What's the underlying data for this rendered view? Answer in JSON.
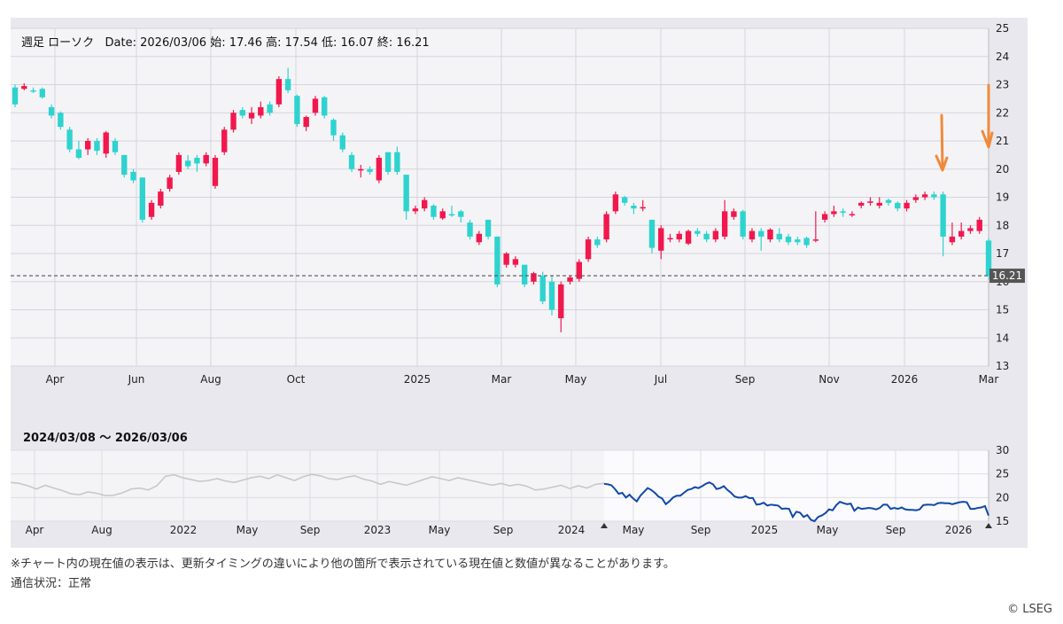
{
  "header": {
    "period": "週足 ローソク",
    "date_label": "Date:",
    "date": "2026/03/06",
    "open_label": "始:",
    "open": "17.46",
    "high_label": "高:",
    "high": "17.54",
    "low_label": "低:",
    "low": "16.07",
    "close_label": "終:",
    "close": "16.21"
  },
  "navigator": {
    "range": "2024/03/08 〜 2026/03/06"
  },
  "notes": {
    "line1": "※チャート内の現在値の表示は、更新タイミングの違いにより他の箇所で表示されている現在値と数値が異なることがあります。",
    "line2": "通信状況：正常"
  },
  "credit": "© LSEG",
  "colors": {
    "up": "#f2174d",
    "down": "#2ed3cf",
    "nav_line": "#1148a8",
    "nav_bg_line": "#c8c8c8",
    "annotation": "#f08a3a"
  },
  "chart_data": [
    {
      "type": "candlestick",
      "title": "週足 ローソク",
      "ylim": [
        13,
        25
      ],
      "y_ticks": [
        "13",
        "14",
        "15",
        "16",
        "17",
        "18",
        "19",
        "20",
        "21",
        "22",
        "23",
        "24",
        "25"
      ],
      "x_tick_labels": [
        "Apr",
        "Jun",
        "Aug",
        "Oct",
        "2025",
        "Mar",
        "May",
        "Jul",
        "Sep",
        "Nov",
        "2026",
        "Mar"
      ],
      "current_value": "16.21",
      "candles": [
        [
          22.9,
          22.3,
          23.0,
          22.2
        ],
        [
          22.85,
          22.95,
          23.05,
          22.8
        ],
        [
          22.8,
          22.75,
          22.9,
          22.7
        ],
        [
          22.85,
          22.55,
          22.9,
          22.5
        ],
        [
          22.2,
          21.9,
          22.3,
          21.8
        ],
        [
          22.0,
          21.5,
          22.05,
          21.4
        ],
        [
          21.4,
          20.7,
          21.5,
          20.6
        ],
        [
          20.7,
          20.4,
          21.0,
          20.35
        ],
        [
          20.7,
          21.0,
          21.1,
          20.5
        ],
        [
          21.0,
          20.65,
          21.1,
          20.5
        ],
        [
          20.55,
          21.3,
          21.35,
          20.4
        ],
        [
          21.0,
          20.6,
          21.1,
          20.5
        ],
        [
          20.5,
          19.8,
          20.5,
          19.7
        ],
        [
          19.9,
          19.6,
          20.0,
          19.5
        ],
        [
          19.7,
          18.2,
          19.7,
          18.1
        ],
        [
          18.3,
          18.8,
          18.9,
          18.2
        ],
        [
          18.7,
          19.2,
          19.3,
          18.6
        ],
        [
          19.3,
          19.7,
          19.8,
          19.2
        ],
        [
          19.9,
          20.5,
          20.6,
          19.8
        ],
        [
          20.3,
          20.1,
          20.5,
          20.0
        ],
        [
          20.4,
          20.2,
          20.5,
          19.9
        ],
        [
          20.2,
          20.5,
          20.6,
          20.1
        ],
        [
          19.4,
          20.4,
          20.5,
          19.3
        ],
        [
          20.6,
          21.4,
          21.5,
          20.5
        ],
        [
          21.4,
          22.0,
          22.1,
          21.3
        ],
        [
          22.1,
          21.9,
          22.2,
          21.8
        ],
        [
          21.8,
          22.0,
          22.2,
          21.6
        ],
        [
          21.9,
          22.2,
          22.4,
          21.8
        ],
        [
          22.3,
          22.0,
          22.4,
          21.9
        ],
        [
          22.3,
          23.2,
          23.3,
          22.2
        ],
        [
          23.2,
          22.8,
          23.6,
          22.7
        ],
        [
          22.6,
          21.6,
          22.65,
          21.5
        ],
        [
          21.5,
          21.85,
          21.9,
          21.35
        ],
        [
          22.0,
          22.5,
          22.6,
          21.9
        ],
        [
          22.55,
          21.9,
          22.6,
          21.8
        ],
        [
          21.75,
          21.2,
          21.8,
          21.0
        ],
        [
          21.2,
          20.7,
          21.3,
          20.6
        ],
        [
          20.5,
          20.0,
          20.6,
          19.9
        ],
        [
          19.95,
          20.0,
          20.15,
          19.7
        ],
        [
          20.0,
          19.9,
          20.1,
          19.8
        ],
        [
          19.6,
          20.4,
          20.5,
          19.5
        ],
        [
          20.6,
          19.9,
          20.6,
          19.8
        ],
        [
          20.6,
          19.9,
          20.8,
          19.8
        ],
        [
          19.8,
          18.5,
          19.8,
          18.2
        ],
        [
          18.5,
          18.6,
          18.7,
          18.4
        ],
        [
          18.6,
          18.9,
          19.0,
          18.5
        ],
        [
          18.7,
          18.3,
          18.75,
          18.2
        ],
        [
          18.25,
          18.5,
          18.6,
          18.2
        ],
        [
          18.4,
          18.35,
          18.7,
          18.3
        ],
        [
          18.5,
          18.3,
          18.55,
          18.1
        ],
        [
          18.1,
          17.6,
          18.2,
          17.5
        ],
        [
          17.4,
          17.7,
          17.8,
          17.3
        ],
        [
          18.2,
          17.6,
          18.2,
          17.5
        ],
        [
          17.6,
          15.9,
          17.6,
          15.8
        ],
        [
          16.6,
          17.0,
          17.05,
          16.5
        ],
        [
          16.6,
          16.8,
          16.9,
          16.5
        ],
        [
          16.6,
          15.9,
          16.6,
          15.8
        ],
        [
          16.0,
          16.3,
          16.35,
          15.9
        ],
        [
          16.2,
          15.3,
          16.35,
          15.2
        ],
        [
          16.0,
          15.0,
          16.2,
          14.8
        ],
        [
          14.7,
          15.9,
          16.0,
          14.2
        ],
        [
          16.0,
          16.15,
          16.2,
          15.9
        ],
        [
          16.1,
          16.7,
          16.8,
          16.0
        ],
        [
          16.8,
          17.5,
          17.6,
          16.7
        ],
        [
          17.5,
          17.3,
          17.6,
          17.2
        ],
        [
          17.5,
          18.4,
          18.5,
          17.4
        ],
        [
          18.5,
          19.1,
          19.2,
          18.4
        ],
        [
          19.0,
          18.8,
          19.05,
          18.7
        ],
        [
          18.7,
          18.6,
          18.8,
          18.4
        ],
        [
          18.6,
          18.65,
          18.9,
          18.5
        ],
        [
          18.2,
          17.2,
          18.2,
          17.0
        ],
        [
          17.1,
          17.9,
          18.0,
          16.8
        ],
        [
          17.5,
          17.55,
          17.7,
          17.4
        ],
        [
          17.5,
          17.7,
          17.8,
          17.4
        ],
        [
          17.35,
          17.8,
          17.85,
          17.3
        ],
        [
          17.8,
          17.7,
          17.9,
          17.6
        ],
        [
          17.7,
          17.5,
          17.8,
          17.4
        ],
        [
          17.5,
          17.8,
          17.9,
          17.4
        ],
        [
          17.6,
          18.5,
          18.9,
          17.5
        ],
        [
          18.3,
          18.5,
          18.6,
          18.2
        ],
        [
          18.5,
          17.6,
          18.55,
          17.5
        ],
        [
          17.5,
          17.8,
          17.9,
          17.4
        ],
        [
          17.8,
          17.6,
          17.9,
          17.1
        ],
        [
          17.5,
          17.85,
          17.9,
          17.4
        ],
        [
          17.7,
          17.5,
          17.9,
          17.4
        ],
        [
          17.6,
          17.4,
          17.7,
          17.3
        ],
        [
          17.5,
          17.4,
          17.6,
          17.3
        ],
        [
          17.55,
          17.3,
          17.6,
          17.2
        ],
        [
          17.5,
          17.5,
          18.5,
          17.4
        ],
        [
          18.2,
          18.4,
          18.5,
          18.1
        ],
        [
          18.4,
          18.5,
          18.7,
          18.3
        ],
        [
          18.5,
          18.45,
          18.6,
          18.3
        ],
        [
          18.4,
          18.4,
          18.5,
          18.3
        ],
        [
          18.7,
          18.8,
          18.85,
          18.6
        ],
        [
          18.8,
          18.85,
          19.0,
          18.7
        ],
        [
          18.7,
          18.8,
          19.0,
          18.6
        ],
        [
          18.9,
          18.8,
          18.95,
          18.7
        ],
        [
          18.8,
          18.6,
          18.85,
          18.5
        ],
        [
          18.6,
          18.8,
          18.9,
          18.5
        ],
        [
          18.9,
          19.0,
          19.1,
          18.8
        ],
        [
          19.0,
          19.1,
          19.2,
          18.9
        ],
        [
          19.1,
          19.0,
          19.2,
          18.9
        ],
        [
          19.1,
          17.6,
          19.2,
          16.9
        ],
        [
          17.4,
          17.6,
          18.1,
          17.3
        ],
        [
          17.6,
          17.8,
          18.1,
          17.5
        ],
        [
          17.8,
          17.9,
          18.0,
          17.7
        ],
        [
          17.8,
          18.2,
          18.3,
          17.7
        ],
        [
          17.46,
          16.21,
          17.54,
          16.07
        ]
      ]
    },
    {
      "type": "line",
      "title": "2024/03/08 〜 2026/03/06",
      "ylim": [
        15,
        30
      ],
      "y_ticks": [
        "15",
        "20",
        "25",
        "30"
      ],
      "x_tick_labels": [
        "Apr",
        "Aug",
        "2022",
        "May",
        "Sep",
        "2023",
        "May",
        "Sep",
        "2024",
        "May",
        "Sep",
        "2025",
        "May",
        "Sep",
        "2026"
      ],
      "series": [
        {
          "values": [
            23.2,
            23.0,
            22.5,
            21.8,
            22.6,
            22.0,
            21.5,
            20.8,
            20.6,
            21.2,
            20.9,
            20.4,
            20.5,
            21.0,
            21.8,
            22.0,
            21.6,
            22.5,
            24.5,
            24.8,
            24.2,
            23.8,
            23.4,
            23.6,
            24.0,
            23.5,
            23.2,
            23.7,
            24.2,
            24.5,
            24.0,
            24.8,
            24.2,
            23.6,
            24.4,
            24.9,
            24.6,
            24.0,
            23.8,
            24.3,
            24.6,
            23.9,
            23.5,
            22.8,
            23.4,
            23.0,
            22.6,
            23.2,
            23.8,
            24.4,
            24.0,
            23.6,
            24.2,
            23.8,
            23.4,
            23.0,
            22.6,
            23.0,
            22.5,
            22.8,
            22.4,
            21.6,
            21.8,
            22.2,
            22.6,
            21.9,
            22.5,
            22.0,
            22.8,
            23.0
          ]
        },
        {
          "values": [
            22.9,
            22.8,
            22.6,
            21.8,
            20.8,
            21.0,
            20.0,
            20.6,
            19.8,
            19.2,
            20.4,
            21.2,
            22.0,
            21.6,
            21.0,
            20.2,
            19.8,
            18.6,
            19.2,
            20.0,
            20.4,
            20.4,
            21.0,
            21.6,
            21.8,
            22.2,
            22.0,
            22.4,
            22.9,
            23.2,
            22.8,
            21.8,
            22.0,
            22.4,
            21.6,
            21.0,
            20.2,
            20.0,
            20.0,
            20.3,
            19.9,
            19.9,
            18.5,
            18.6,
            18.9,
            18.3,
            18.5,
            18.4,
            18.3,
            17.6,
            17.7,
            17.6,
            15.9,
            17.0,
            16.8,
            15.9,
            16.3,
            15.3,
            15.0,
            15.9,
            16.2,
            16.7,
            17.5,
            17.3,
            18.4,
            19.1,
            18.8,
            18.6,
            18.7,
            17.2,
            17.9,
            17.6,
            17.7,
            17.8,
            17.7,
            17.5,
            17.8,
            18.5,
            18.5,
            17.6,
            17.8,
            17.6,
            17.9,
            17.5,
            17.4,
            17.4,
            17.3,
            17.5,
            18.4,
            18.5,
            18.5,
            18.4,
            18.8,
            18.9,
            18.8,
            18.8,
            18.6,
            18.8,
            19.0,
            19.1,
            19.0,
            17.6,
            17.6,
            17.8,
            17.9,
            18.2,
            16.2
          ]
        }
      ]
    }
  ]
}
